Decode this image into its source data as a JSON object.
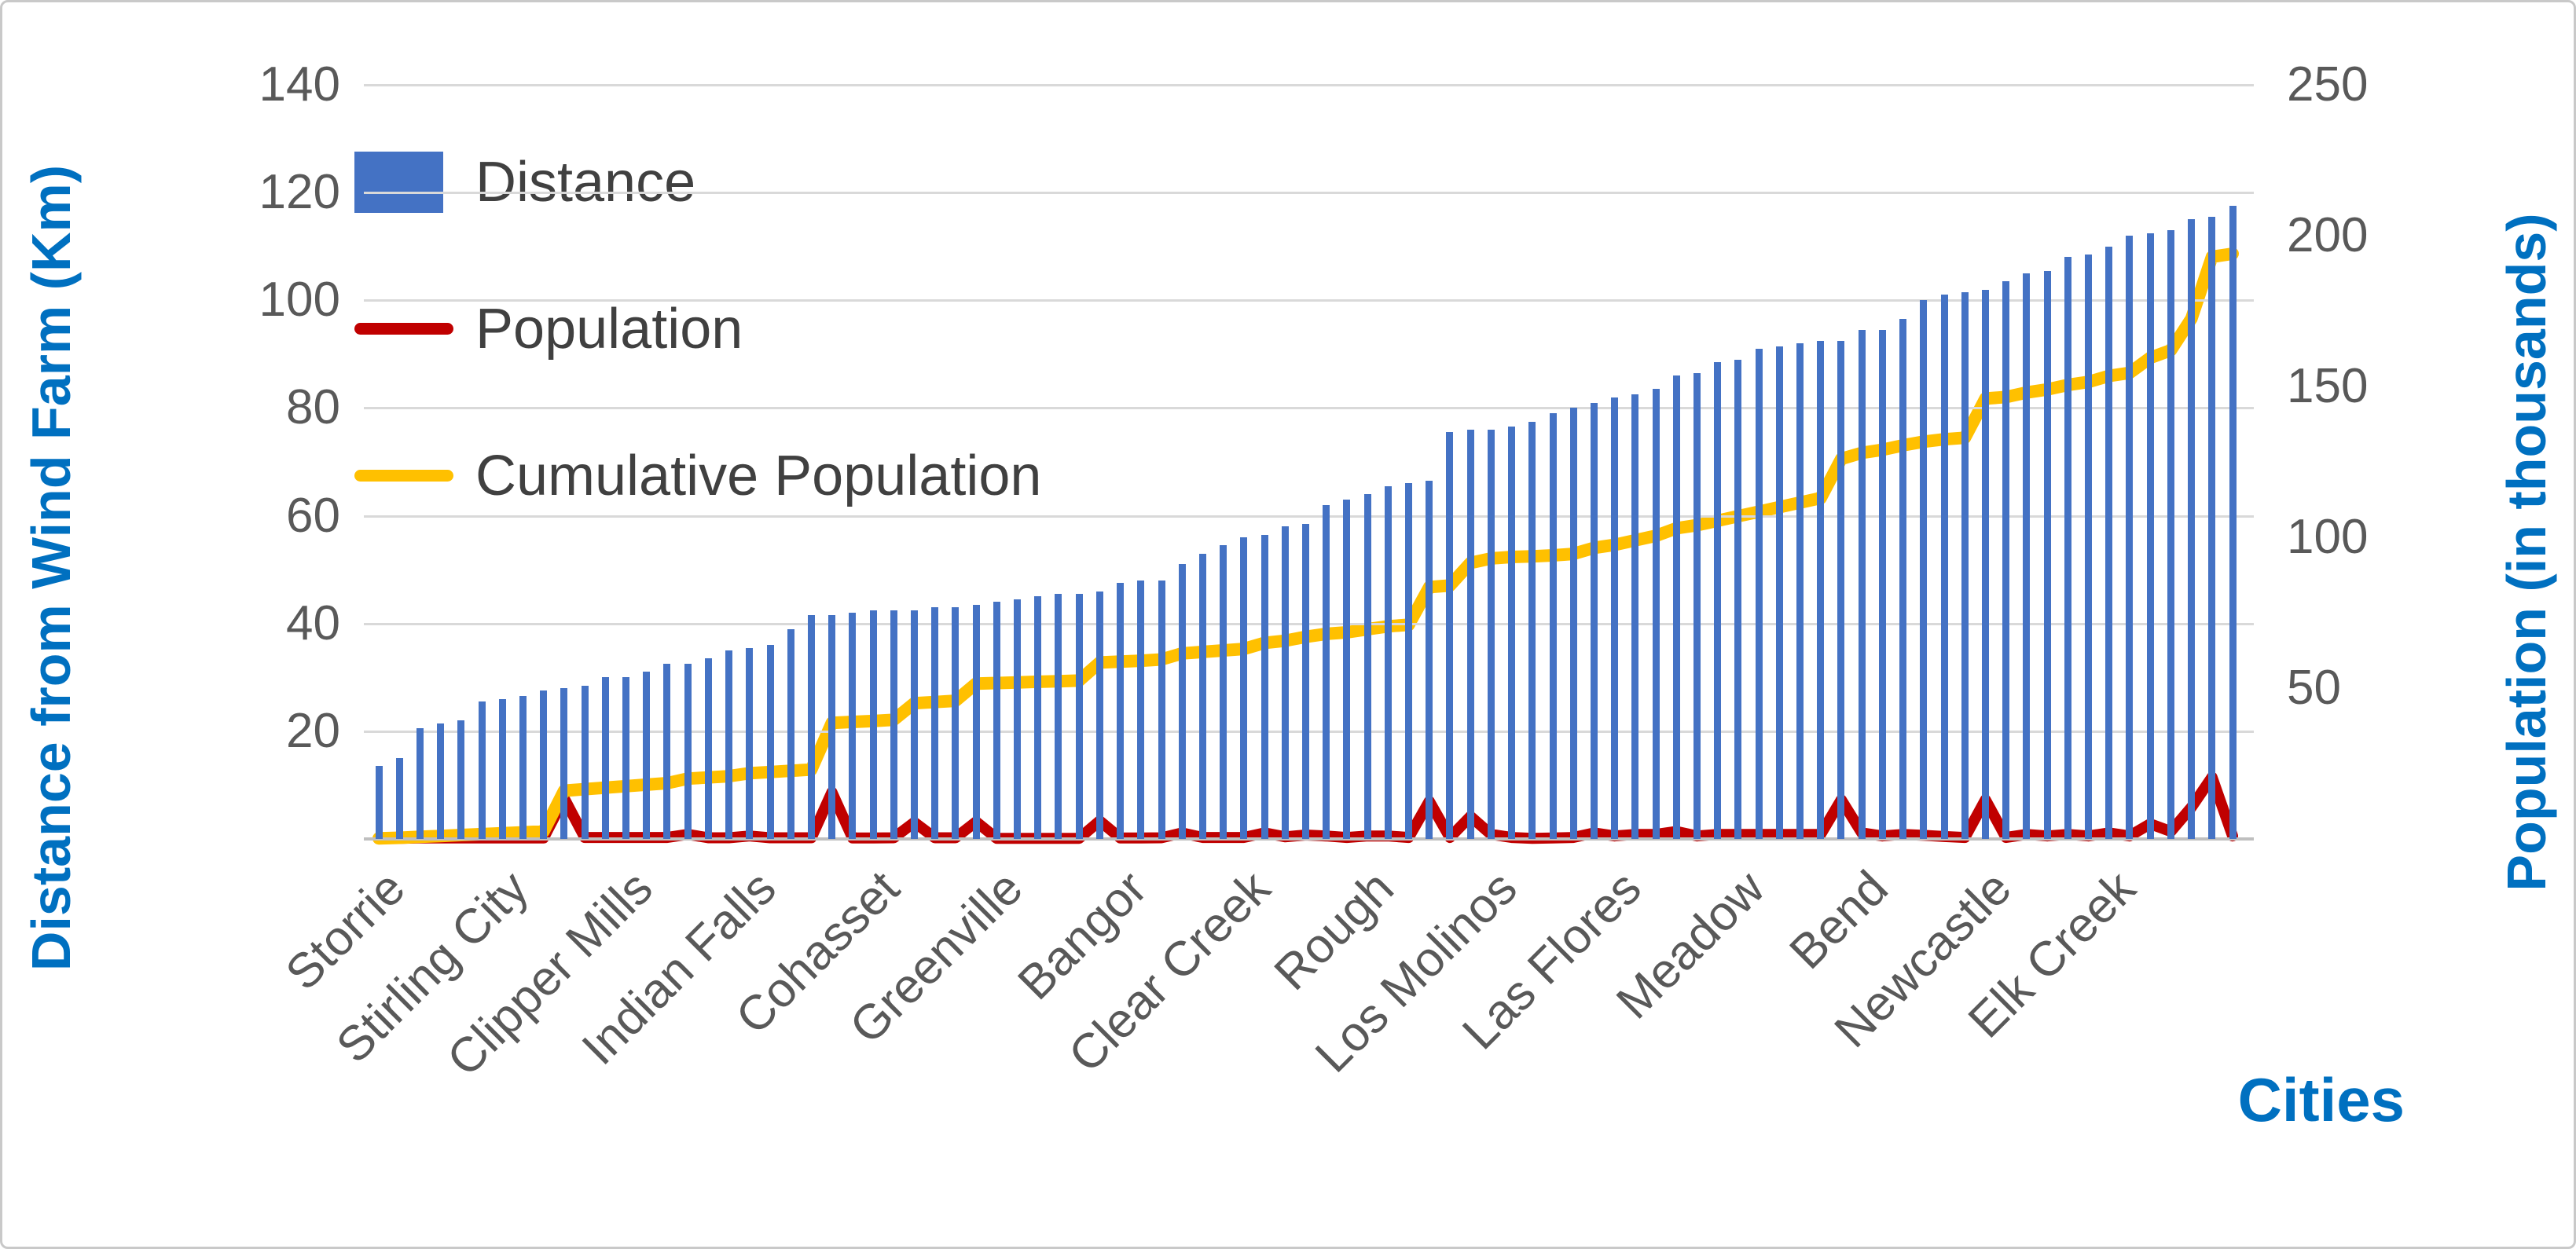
{
  "chart_data": {
    "type": "bar",
    "title": "",
    "grid": "horizontal-only",
    "legend": {
      "position": "top-left-inside-plot"
    },
    "x_axis": {
      "title": "Cities",
      "n_points": 91,
      "label_interval": 6,
      "labels": [
        "Storrie",
        "Stirling City",
        "Clipper Mills",
        "Indian Falls",
        "Cohasset",
        "Greenville",
        "Bangor",
        "Clear Creek",
        "Rough",
        "Los Molinos",
        "Las Flores",
        "Meadow",
        "Bend",
        "Newcastle",
        "Elk Creek"
      ]
    },
    "y_left": {
      "title": "Distance from Wind Farm (Km)",
      "min": 0,
      "max": 140,
      "step": 20,
      "ticks": [
        140,
        120,
        100,
        80,
        60,
        40,
        20
      ]
    },
    "y_right": {
      "title": "Population (in thousands)",
      "min": 0,
      "max": 250,
      "step": 50,
      "ticks": [
        250,
        200,
        150,
        100,
        50
      ]
    },
    "series": [
      {
        "name": "Distance",
        "type": "bar",
        "axis": "left",
        "color": "#4472C4",
        "values": [
          13.5,
          15,
          20.5,
          21.5,
          22,
          25.5,
          26,
          26.5,
          27.5,
          28,
          28.5,
          30,
          30,
          31,
          32.5,
          32.5,
          33.5,
          35,
          35.5,
          36,
          39,
          41.5,
          41.5,
          42,
          42.5,
          42.5,
          42.5,
          43,
          43,
          43.5,
          44,
          44.5,
          45,
          45.5,
          45.5,
          46,
          47.5,
          48,
          48,
          51,
          53,
          54.5,
          56,
          56.5,
          58,
          58.5,
          62,
          63,
          64,
          65.5,
          66,
          66.5,
          75.5,
          76,
          76,
          76.5,
          77.5,
          79,
          80,
          81,
          82,
          82.5,
          83.5,
          86,
          86.5,
          88.5,
          89,
          91,
          91.5,
          92,
          92.5,
          92.5,
          94.5,
          94.5,
          96.5,
          100,
          101,
          101.5,
          102,
          103.5,
          105,
          105.5,
          108,
          108.5,
          110,
          112,
          112.5,
          113,
          115,
          115.5,
          117.5
        ]
      },
      {
        "name": "Population",
        "type": "line",
        "axis": "right",
        "color": "#C00000",
        "values": [
          0.2,
          0.2,
          0.3,
          0.3,
          0.3,
          0.3,
          0.3,
          0.3,
          0.3,
          13.5,
          0.5,
          0.5,
          0.5,
          0.5,
          0.5,
          1.5,
          0.4,
          0.4,
          1.0,
          0.4,
          0.4,
          0.4,
          15.5,
          0.3,
          0.3,
          0.4,
          5.5,
          0.4,
          0.4,
          5.7,
          0.2,
          0.2,
          0.2,
          0.2,
          0.2,
          6.0,
          0.3,
          0.3,
          0.4,
          2.0,
          0.5,
          0.5,
          0.5,
          2.0,
          0.7,
          1.3,
          1.0,
          0.5,
          1.0,
          1.0,
          0.5,
          12.5,
          0.5,
          7.5,
          1.5,
          0.5,
          0.2,
          0.3,
          0.5,
          2.0,
          1.0,
          1.5,
          1.5,
          2.5,
          1.0,
          1.5,
          1.5,
          1.5,
          1.5,
          1.5,
          1.5,
          13.0,
          2.0,
          1.0,
          1.5,
          1.2,
          0.8,
          0.5,
          13.0,
          0.5,
          1.5,
          1.0,
          1.5,
          1.0,
          2.0,
          1.0,
          5.0,
          2.5,
          10.5,
          20.5,
          1.0
        ]
      },
      {
        "name": "Cumulative Population",
        "type": "line",
        "axis": "right",
        "color": "#FFC000",
        "values": [
          0.2,
          0.4,
          0.7,
          1.0,
          1.3,
          1.6,
          1.9,
          2.2,
          2.5,
          16.0,
          16.5,
          17.0,
          17.5,
          18.0,
          18.5,
          20.0,
          20.4,
          20.8,
          21.8,
          22.2,
          22.6,
          23.0,
          38.5,
          38.8,
          39.1,
          39.5,
          45.0,
          45.4,
          45.8,
          51.5,
          51.7,
          51.9,
          52.1,
          52.3,
          52.5,
          58.5,
          58.8,
          59.1,
          59.5,
          61.5,
          62.0,
          62.5,
          63.0,
          65.0,
          65.7,
          67.0,
          68.0,
          68.5,
          69.5,
          70.5,
          71.0,
          83.5,
          84.0,
          91.5,
          93.0,
          93.5,
          93.7,
          94.0,
          94.5,
          96.5,
          97.5,
          99.0,
          100.5,
          103.0,
          104.0,
          105.5,
          107.0,
          108.5,
          110.0,
          111.5,
          113.0,
          126.0,
          128.0,
          129.0,
          130.5,
          131.7,
          132.5,
          133.0,
          146.0,
          146.5,
          148.0,
          149.0,
          150.5,
          151.5,
          153.5,
          154.5,
          159.5,
          162.0,
          172.5,
          193.0,
          194.0
        ]
      }
    ],
    "colors": {
      "axis_title": "#0070C0",
      "tick_label": "#595959",
      "legend_text": "#404040",
      "gridline": "#D9D9D9",
      "axis_line": "#BFBFBF",
      "background": "#FFFFFF",
      "border": "#C9C9C9"
    }
  }
}
